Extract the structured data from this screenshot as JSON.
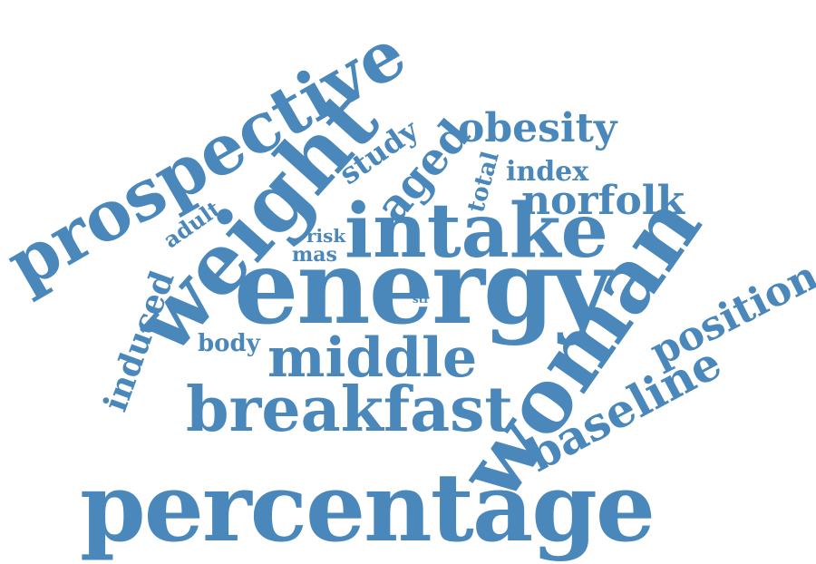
{
  "cloud": {
    "color": "#4a87bb",
    "words": {
      "prospective": "prospective",
      "weight": "weight",
      "energy": "energy",
      "intake": "intake",
      "woman": "woman",
      "percentage": "percentage",
      "breakfast": "breakfast",
      "middle": "middle",
      "obesity": "obesity",
      "norfolk": "norfolk",
      "baseline": "baseline",
      "position": "position",
      "aged": "aged",
      "study": "study",
      "induced": "induced",
      "adult": "adult",
      "index": "index",
      "total": "total",
      "body": "body",
      "risk": "risk",
      "mas": "mas",
      "str": "str"
    }
  }
}
